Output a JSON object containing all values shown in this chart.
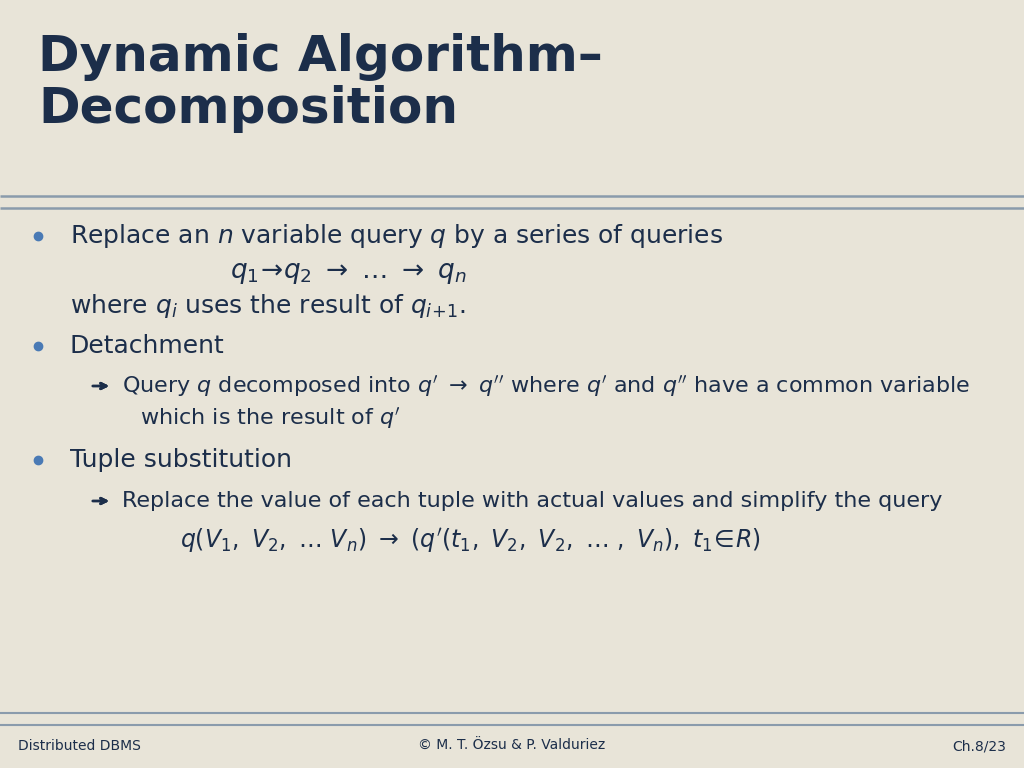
{
  "title": "Dynamic Algorithm–\nDecomposition",
  "title_color": "#1c2e4a",
  "bg_color": "#e8e4d8",
  "text_color": "#1c2e4a",
  "bullet_color": "#4a7ab5",
  "separator_color": "#8a9bac",
  "footer_left": "Distributed DBMS",
  "footer_center": "© M. T. Özsu & P. Valduriez",
  "footer_right": "Ch.8/23",
  "title_fontsize": 36,
  "body_fontsize": 18,
  "sub_fontsize": 16,
  "math_fontsize": 17,
  "footer_fontsize": 10
}
